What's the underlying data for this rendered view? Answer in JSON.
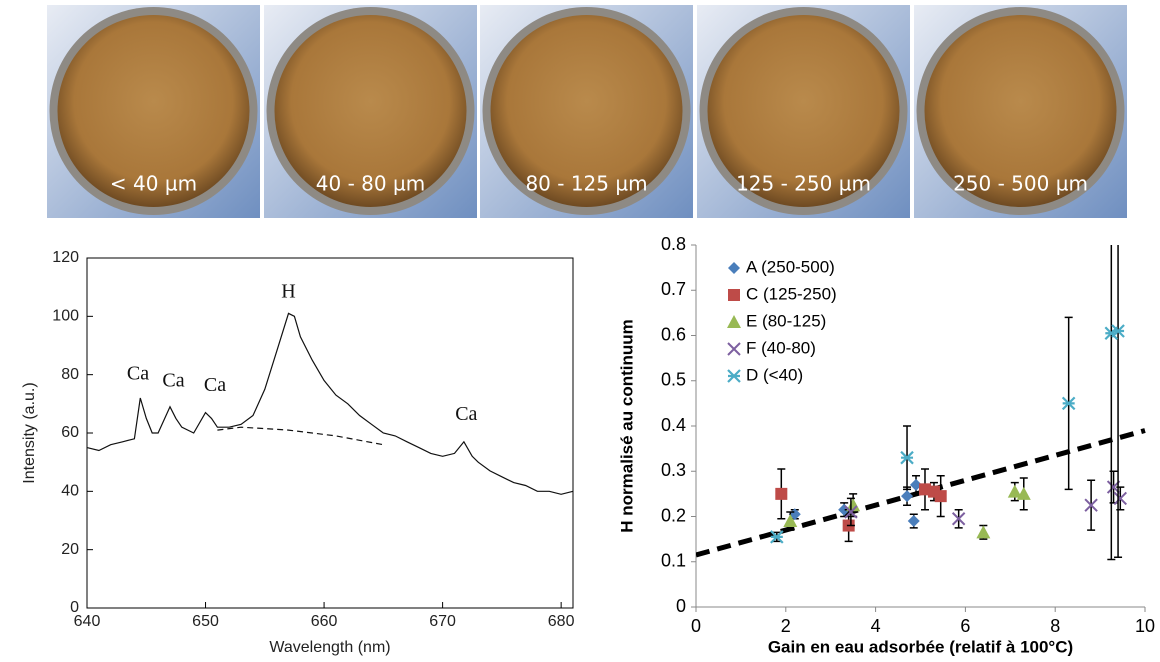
{
  "photos": [
    {
      "label": "< 40 µm"
    },
    {
      "label": "40 - 80 µm"
    },
    {
      "label": "80 - 125 µm"
    },
    {
      "label": "125 - 250 µm"
    },
    {
      "label": "250 - 500 µm"
    }
  ],
  "chart_data": [
    {
      "type": "line",
      "x_label": "Wavelength (nm)",
      "y_label": "Intensity (a.u.)",
      "annotations": [
        "Ca",
        "Ca",
        "Ca",
        "H",
        "Ca"
      ],
      "xlim": [
        640,
        681
      ],
      "ylim": [
        0,
        120
      ],
      "xticks": [
        640,
        650,
        660,
        670,
        680
      ],
      "yticks": [
        0,
        20,
        40,
        60,
        80,
        100,
        120
      ],
      "series": [
        {
          "color": "#111111",
          "dashed": false,
          "x": [
            640,
            641,
            642,
            643,
            644,
            644.5,
            645,
            645.5,
            646,
            647,
            647.5,
            648,
            649,
            650,
            650.5,
            651,
            652,
            653,
            654,
            655,
            656,
            657,
            657.5,
            658,
            659,
            660,
            661,
            662,
            663,
            664,
            665,
            666,
            667,
            668,
            669,
            670,
            671,
            671.8,
            672.5,
            673,
            674,
            675,
            676,
            677,
            678,
            679,
            680,
            681
          ],
          "values": [
            55,
            54,
            56,
            57,
            58,
            72,
            65,
            60,
            60,
            69,
            65,
            62,
            60,
            67,
            65,
            62,
            62,
            63,
            66,
            75,
            88,
            101,
            100,
            93,
            85,
            78,
            73,
            70,
            66,
            63,
            60,
            59,
            57,
            55,
            53,
            52,
            53,
            57,
            52,
            50,
            47,
            45,
            43,
            42,
            40,
            40,
            39,
            40
          ]
        },
        {
          "color": "#111111",
          "dashed": true,
          "x": [
            651,
            653,
            655,
            657,
            659,
            661,
            663,
            665
          ],
          "values": [
            61,
            62,
            61.5,
            61,
            60,
            59,
            57.5,
            56
          ]
        }
      ]
    },
    {
      "type": "scatter",
      "x_label": "Gain en eau adsorbée (relatif à 100°C)",
      "y_label": "H normalisé au continuum",
      "xlim": [
        0,
        10
      ],
      "ylim": [
        0,
        0.8
      ],
      "xticks": [
        0,
        2,
        4,
        6,
        8,
        10
      ],
      "yticks": [
        0,
        0.1,
        0.2,
        0.3,
        0.4,
        0.5,
        0.6,
        0.7,
        0.8
      ],
      "legend": "upper left",
      "trendline": {
        "x": [
          0,
          10
        ],
        "values": [
          0.115,
          0.39
        ]
      },
      "series": [
        {
          "name": "A (250-500)",
          "color": "#4a7ebb",
          "marker": "diamond",
          "x": [
            2.2,
            3.3,
            4.7,
            4.9,
            4.85
          ],
          "values": [
            0.205,
            0.215,
            0.245,
            0.27,
            0.19
          ],
          "errors": [
            0.01,
            0.015,
            0.02,
            0.02,
            0.015
          ]
        },
        {
          "name": "C (125-250)",
          "color": "#be4b48",
          "marker": "square",
          "x": [
            1.9,
            3.4,
            5.1,
            5.3,
            5.45
          ],
          "values": [
            0.25,
            0.18,
            0.26,
            0.255,
            0.245
          ],
          "errors": [
            0.055,
            0.035,
            0.045,
            0.02,
            0.045
          ]
        },
        {
          "name": "E (80-125)",
          "color": "#98b954",
          "marker": "triangle",
          "x": [
            2.1,
            3.5,
            6.4,
            7.1,
            7.3
          ],
          "values": [
            0.19,
            0.225,
            0.165,
            0.255,
            0.25
          ],
          "errors": [
            0.02,
            0.025,
            0.015,
            0.02,
            0.035
          ]
        },
        {
          "name": "F (40-80)",
          "color": "#7d60a0",
          "marker": "x",
          "x": [
            3.45,
            5.85,
            8.8,
            9.3,
            9.45
          ],
          "values": [
            0.21,
            0.195,
            0.225,
            0.265,
            0.24
          ],
          "errors": [
            0.03,
            0.02,
            0.055,
            0.035,
            0.025
          ]
        },
        {
          "name": "D (<40)",
          "color": "#4bacc6",
          "marker": "star",
          "x": [
            1.8,
            4.7,
            8.3,
            9.25,
            9.4
          ],
          "values": [
            0.155,
            0.33,
            0.45,
            0.605,
            0.61
          ],
          "errors": [
            0.01,
            0.07,
            0.19,
            0.5,
            0.5
          ]
        }
      ]
    }
  ]
}
